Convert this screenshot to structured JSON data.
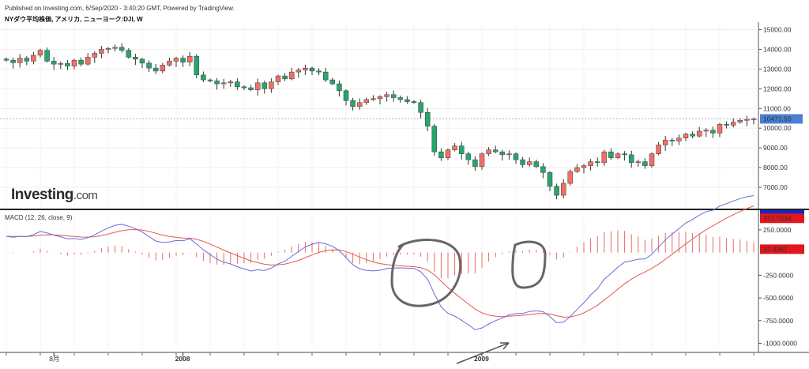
{
  "header": {
    "published": "Published on Investing.com, 6/Sep/2020 - 3:40:20 GMT, Powered by TradingView.",
    "symbol": "NYダウ平均株価, アメリカ, ニューヨーク:DJI, W"
  },
  "logo": {
    "brand": "Investing",
    "suffix": ".com"
  },
  "colors": {
    "up": "#f07067",
    "down": "#26a66b",
    "macd_line": "#6b6bd6",
    "signal_line": "#e2584f",
    "histogram": "#e86a62",
    "last_price_tag": "#4a7fd4",
    "macd_tag": "#1626c9",
    "signal_tag": "#e0171b",
    "hist_tag": "#e0171b",
    "annotation": "#666666",
    "arrow": "#555555"
  },
  "chart_data": [
    {
      "type": "candlestick",
      "title": "NYダウ平均株価, アメリカ, ニューヨーク:DJI, W",
      "ylim": [
        6000,
        15300
      ],
      "y_ticks": [
        "15000.00",
        "14000.00",
        "13000.00",
        "12000.00",
        "11000.00",
        "10000.00",
        "9000.00",
        "8000.00",
        "7000.00"
      ],
      "y_tick_values": [
        15000,
        14000,
        13000,
        12000,
        11000,
        10000,
        9000,
        8000,
        7000
      ],
      "x_labels": [
        {
          "label": "8月",
          "index": 7,
          "bold": false
        },
        {
          "label": "2008",
          "index": 26,
          "bold": true
        },
        {
          "label": "2009",
          "index": 70,
          "bold": true
        }
      ],
      "last_price_label": "10471.50",
      "last_price": 10471.5,
      "closes": [
        13450,
        13320,
        13550,
        13400,
        13700,
        13950,
        13400,
        13250,
        13280,
        13150,
        13450,
        13250,
        13600,
        13800,
        14000,
        14050,
        14100,
        13950,
        13600,
        13500,
        13300,
        13050,
        12900,
        13200,
        13400,
        13550,
        13350,
        13650,
        12700,
        12450,
        12400,
        12250,
        12300,
        12350,
        12100,
        12050,
        11950,
        12300,
        12000,
        12350,
        12650,
        12500,
        12850,
        12950,
        13050,
        12900,
        12850,
        12450,
        12250,
        11900,
        11400,
        11100,
        11300,
        11450,
        11500,
        11600,
        11700,
        11550,
        11450,
        11350,
        11300,
        10800,
        10100,
        8800,
        8500,
        8900,
        9100,
        8700,
        8400,
        8050,
        8700,
        8900,
        8800,
        8650,
        8700,
        8400,
        8150,
        8300,
        8050,
        7750,
        7050,
        6600,
        7200,
        7800,
        8000,
        8100,
        8300,
        8250,
        8800,
        8500,
        8700,
        8650,
        8250,
        8300,
        8100,
        8700,
        9150,
        9400,
        9350,
        9500,
        9700,
        9600,
        9850,
        9900,
        9750,
        10200,
        10150,
        10300,
        10400,
        10450,
        10471.5
      ],
      "macd_ylim": [
        -1100,
        450
      ],
      "macd_ticks": [
        "250.0000",
        "-250.0000",
        "-500.0000",
        "-750.0000",
        "-1000.0000"
      ],
      "macd_tick_values": [
        250,
        -250,
        -500,
        -750,
        -1000
      ],
      "macd_label": "MACD (12, 26, close, 9)",
      "macd_values_label": {
        "macd": "415.1395",
        "signal": "377.7034",
        "histogram": "37.4361"
      },
      "macd_last": 415.1395,
      "signal_last": 377.7034,
      "hist_last": 37.4361
    }
  ]
}
